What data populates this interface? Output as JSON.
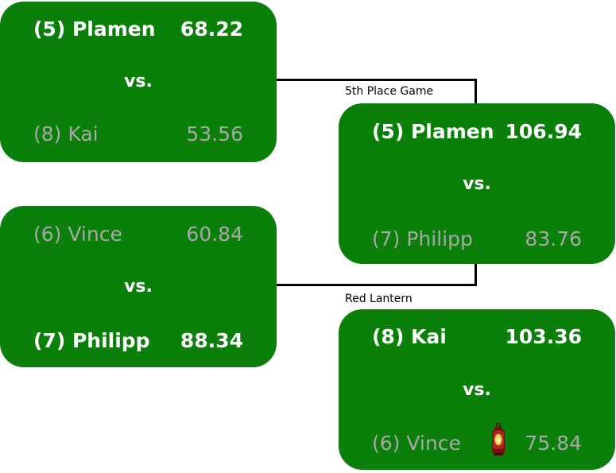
{
  "matchups": [
    {
      "top": {
        "name": "(5) Plamen",
        "score": "68.22",
        "winner": true
      },
      "vs": "vs.",
      "bottom": {
        "name": "(8) Kai",
        "score": "53.56",
        "winner": false
      }
    },
    {
      "top": {
        "name": "(6) Vince",
        "score": "60.84",
        "winner": false
      },
      "vs": "vs.",
      "bottom": {
        "name": "(7) Philipp",
        "score": "88.34",
        "winner": true
      }
    },
    {
      "label": "5th Place Game",
      "top": {
        "name": "(5) Plamen",
        "score": "106.94",
        "winner": true
      },
      "vs": "vs.",
      "bottom": {
        "name": "(7) Philipp",
        "score": "83.76",
        "winner": false
      }
    },
    {
      "label": "Red Lantern",
      "top": {
        "name": "(8) Kai",
        "score": "103.36",
        "winner": true
      },
      "vs": "vs.",
      "bottom": {
        "name": "(6) Vince",
        "score": "75.84",
        "winner": false,
        "icon": "red-lantern-icon"
      }
    }
  ],
  "colors": {
    "box": "#0a800a",
    "winner_text": "#ffffff",
    "loser_text": "#a8a8a8",
    "lantern": "#b22222"
  }
}
